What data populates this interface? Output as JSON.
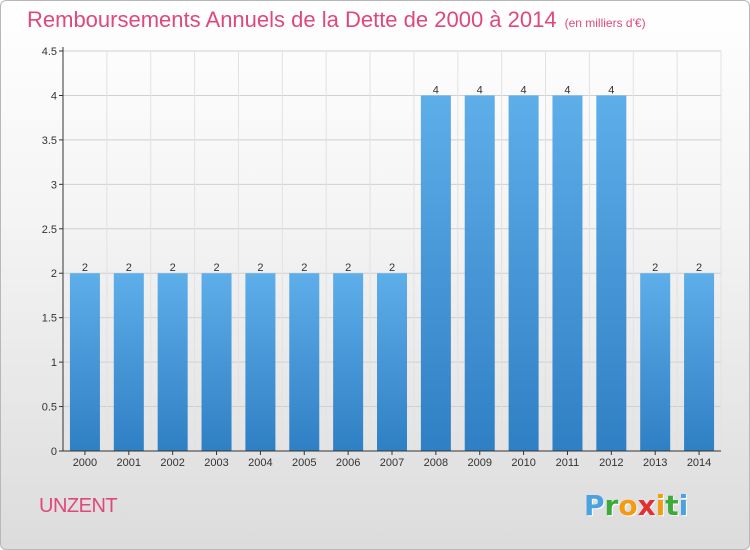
{
  "header": {
    "title": "Remboursements Annuels de la Dette de 2000 à 2014",
    "unit": "(en milliers d'€)"
  },
  "footer": {
    "commune": "UNZENT",
    "logo": {
      "letters": [
        "P",
        "r",
        "o",
        "x",
        "i",
        "t",
        "i"
      ],
      "colors": [
        "#4aa3df",
        "#3cab3a",
        "#f39c12",
        "#e0302f",
        "#f39c12",
        "#3cab3a",
        "#4aa3df"
      ]
    }
  },
  "chart_data": {
    "type": "bar",
    "title": "Remboursements Annuels de la Dette de 2000 à 2014",
    "subtitle": "(en milliers d'€)",
    "categories": [
      "2000",
      "2001",
      "2002",
      "2003",
      "2004",
      "2005",
      "2006",
      "2007",
      "2008",
      "2009",
      "2010",
      "2011",
      "2012",
      "2013",
      "2014"
    ],
    "values": [
      2,
      2,
      2,
      2,
      2,
      2,
      2,
      2,
      4,
      4,
      4,
      4,
      4,
      2,
      2
    ],
    "data_labels": [
      "2",
      "2",
      "2",
      "2",
      "2",
      "2",
      "2",
      "2",
      "4",
      "4",
      "4",
      "4",
      "4",
      "2",
      "2"
    ],
    "y_ticks": [
      "0",
      "0.5",
      "1",
      "1.5",
      "2",
      "2.5",
      "3",
      "3.5",
      "4",
      "4.5"
    ],
    "y_tick_values": [
      0,
      0.5,
      1,
      1.5,
      2,
      2.5,
      3,
      3.5,
      4,
      4.5
    ],
    "ylim": [
      0,
      4.5
    ],
    "grid": true,
    "bar_color": "#3a8fd8"
  }
}
